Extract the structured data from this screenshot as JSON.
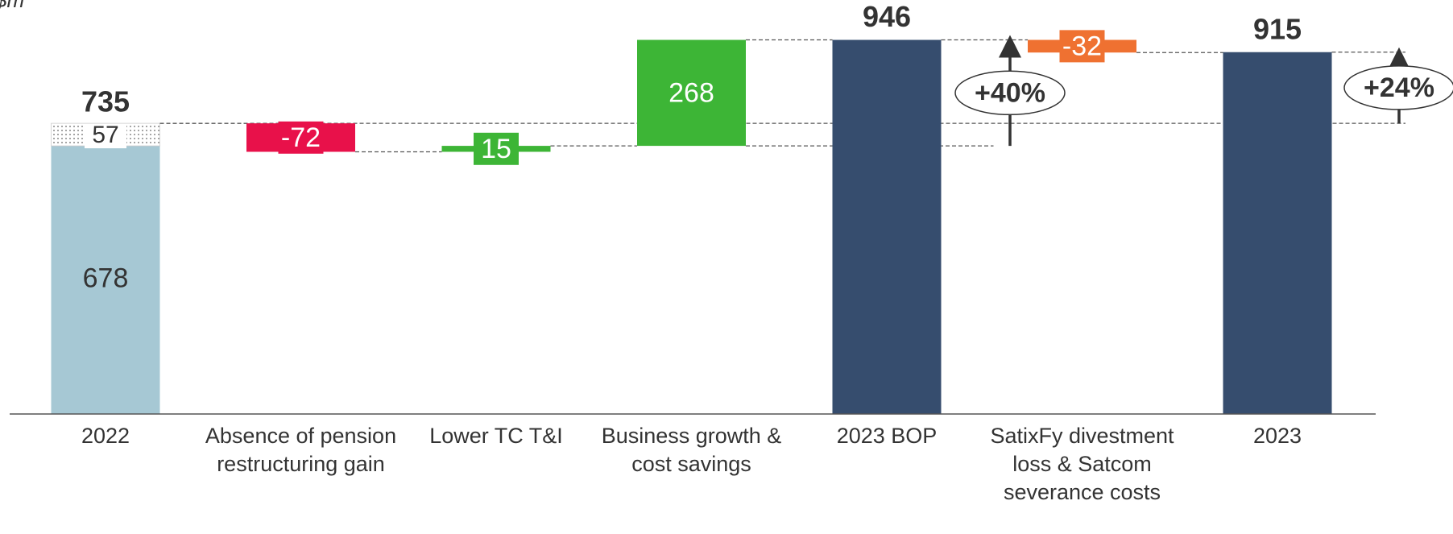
{
  "chart_data": {
    "type": "waterfall",
    "subtitle": "$m",
    "categories": [
      "2022",
      "Absence of pension restructuring gain",
      "Lower TC T&I",
      "Business growth & cost savings",
      "2023 BOP",
      "SatixFy divestment loss & Satcom severance costs",
      "2023"
    ],
    "values": [
      735,
      -72,
      15,
      268,
      946,
      -32,
      915
    ],
    "measure": [
      "total",
      "relative",
      "relative",
      "relative",
      "total",
      "relative",
      "total"
    ],
    "breakdown": [
      678,
      57
    ],
    "colors": [
      "#a6c8d4",
      "#e8114a",
      "#3db536",
      "#3db536",
      "#364d6e",
      "#ef7131",
      "#364d6e"
    ],
    "ylim": [
      0,
      1000
    ],
    "annotations": [
      {
        "text": "+40%"
      },
      {
        "text": "+24%"
      }
    ]
  }
}
